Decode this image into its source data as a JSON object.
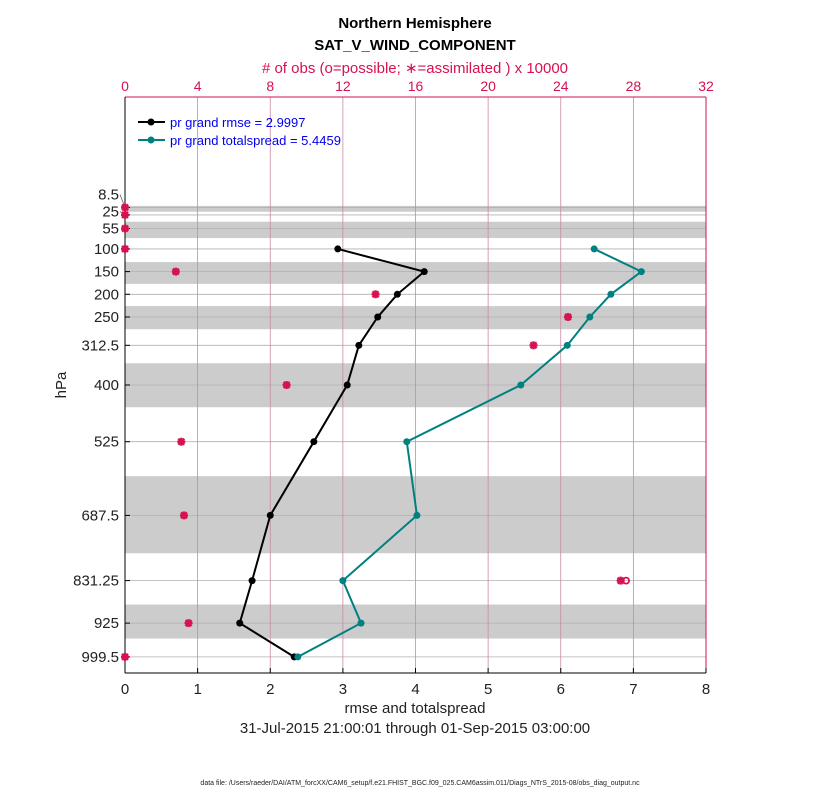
{
  "chart_data": {
    "type": "line",
    "title": "Northern Hemisphere",
    "subtitle": "SAT_V_WIND_COMPONENT",
    "top_xlabel": "# of obs (o=possible; ∗=assimilated ) x 10000",
    "xlabel": "rmse and totalspread",
    "ylabel": "hPa",
    "date_range": "31-Jul-2015 21:00:01 through 01-Sep-2015 03:00:00",
    "footer": "data file: /Users/raeder/DAI/ATM_forcXX/CAM6_setup/f.e21.FHIST_BGC.f09_025.CAM6assim.011/Diags_NTrS_2015-08/obs_diag_output.nc",
    "xlim": [
      0,
      8
    ],
    "xticks": [
      "0",
      "1",
      "2",
      "3",
      "4",
      "5",
      "6",
      "7",
      "8"
    ],
    "top_xlim": [
      0,
      32
    ],
    "top_xticks": [
      "0",
      "4",
      "8",
      "12",
      "16",
      "20",
      "24",
      "28",
      "32"
    ],
    "ylim": [
      -235,
      1035
    ],
    "levels": [
      8.5,
      25,
      55,
      100,
      150,
      200,
      250,
      312.5,
      400,
      525,
      687.5,
      831.25,
      925,
      999.5
    ],
    "level_labels": [
      "8.5",
      "25",
      "55",
      "100",
      "150",
      "200",
      "250",
      "312.5",
      "400",
      "525",
      "687.5",
      "831.25",
      "925",
      "999.5"
    ],
    "shaded_layers": [
      [
        5,
        18
      ],
      [
        40,
        76
      ],
      [
        129,
        177
      ],
      [
        226,
        277
      ],
      [
        352,
        449
      ],
      [
        601,
        771
      ],
      [
        884,
        959
      ]
    ],
    "series": [
      {
        "name": "pr grand rmse = 2.9997",
        "color": "#000000",
        "levels": [
          100,
          150,
          200,
          250,
          312.5,
          400,
          525,
          687.5,
          831.25,
          925,
          999.5
        ],
        "values": [
          2.93,
          4.12,
          3.75,
          3.48,
          3.22,
          3.06,
          2.6,
          2.0,
          1.75,
          1.58,
          2.33
        ]
      },
      {
        "name": "pr grand totalspread = 5.4459",
        "color": "#008080",
        "levels": [
          100,
          150,
          200,
          250,
          312.5,
          400,
          525,
          687.5,
          831.25,
          925,
          999.5
        ],
        "values": [
          6.46,
          7.11,
          6.69,
          6.4,
          6.09,
          5.45,
          3.88,
          4.02,
          3.0,
          3.25,
          2.38
        ]
      }
    ],
    "obs_assimilated": {
      "levels": [
        8.5,
        25,
        55,
        100,
        150,
        200,
        250,
        312.5,
        400,
        525,
        687.5,
        831.25,
        925,
        999.5
      ],
      "values": [
        0,
        0,
        0,
        0,
        2.8,
        13.8,
        24.4,
        22.5,
        8.9,
        3.1,
        3.25,
        27.3,
        3.5,
        0
      ]
    },
    "obs_possible": {
      "levels": [
        831.25
      ],
      "values": [
        27.6
      ]
    },
    "obs_color": "#d6124f",
    "legend_position": "top-left"
  }
}
